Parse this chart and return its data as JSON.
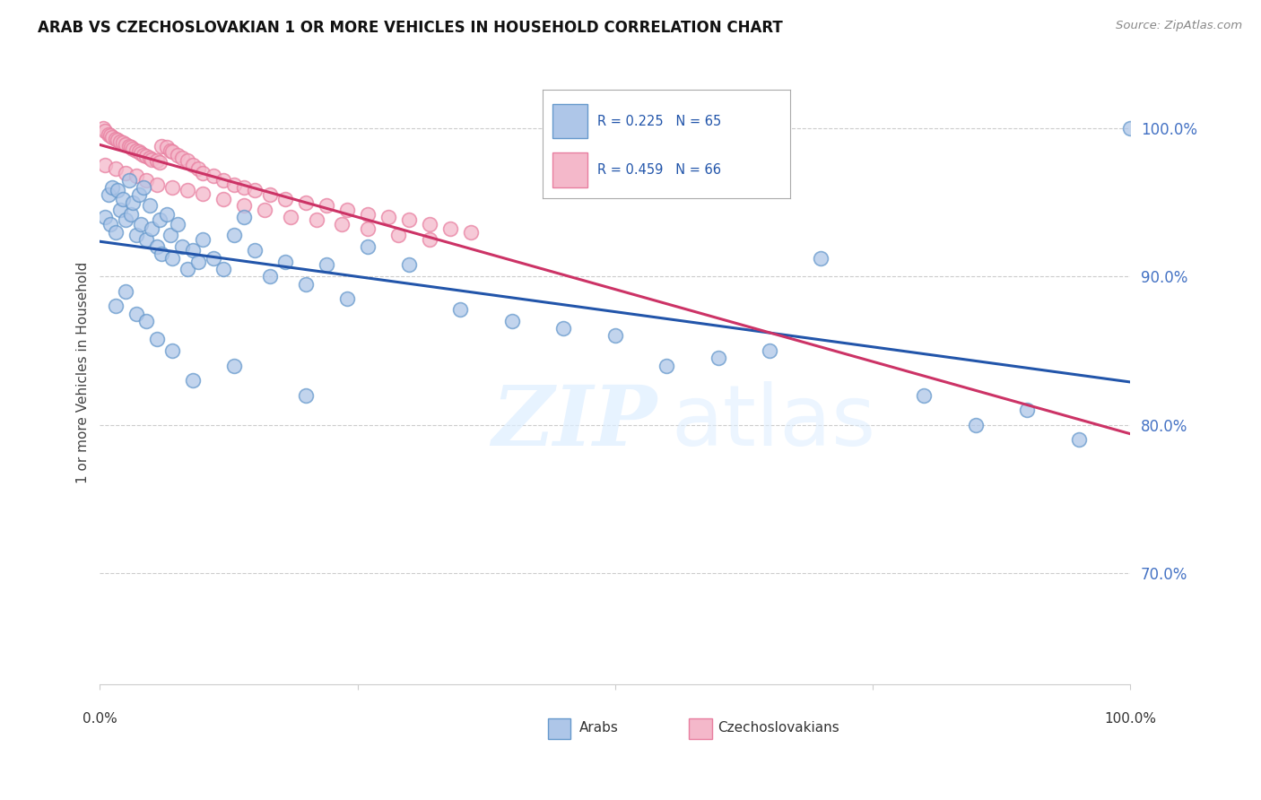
{
  "title": "ARAB VS CZECHOSLOVAKIAN 1 OR MORE VEHICLES IN HOUSEHOLD CORRELATION CHART",
  "source": "Source: ZipAtlas.com",
  "ylabel": "1 or more Vehicles in Household",
  "ytick_labels": [
    "70.0%",
    "80.0%",
    "90.0%",
    "100.0%"
  ],
  "ytick_values": [
    0.7,
    0.8,
    0.9,
    1.0
  ],
  "xlim": [
    0.0,
    1.0
  ],
  "ylim": [
    0.625,
    1.045
  ],
  "legend_blue_R": "R = 0.225",
  "legend_blue_N": "N = 65",
  "legend_pink_R": "R = 0.459",
  "legend_pink_N": "N = 66",
  "arab_color": "#aec6e8",
  "czech_color": "#f4b8ca",
  "arab_edge_color": "#6699cc",
  "czech_edge_color": "#e87fa0",
  "trend_blue": "#2255aa",
  "trend_pink": "#cc3366",
  "background_color": "#ffffff",
  "grid_color": "#cccccc",
  "watermark_zip": "ZIP",
  "watermark_atlas": "atlas",
  "arab_x": [
    0.005,
    0.008,
    0.01,
    0.012,
    0.015,
    0.017,
    0.02,
    0.022,
    0.025,
    0.028,
    0.03,
    0.032,
    0.035,
    0.038,
    0.04,
    0.042,
    0.045,
    0.048,
    0.05,
    0.055,
    0.058,
    0.06,
    0.065,
    0.068,
    0.07,
    0.075,
    0.08,
    0.085,
    0.09,
    0.095,
    0.1,
    0.11,
    0.12,
    0.13,
    0.14,
    0.15,
    0.165,
    0.18,
    0.2,
    0.22,
    0.24,
    0.26,
    0.3,
    0.35,
    0.4,
    0.45,
    0.5,
    0.55,
    0.6,
    0.65,
    0.7,
    0.8,
    0.85,
    0.9,
    0.95,
    1.0,
    0.015,
    0.025,
    0.035,
    0.045,
    0.055,
    0.07,
    0.09,
    0.13,
    0.2
  ],
  "arab_y": [
    0.94,
    0.955,
    0.935,
    0.96,
    0.93,
    0.958,
    0.945,
    0.952,
    0.938,
    0.965,
    0.942,
    0.95,
    0.928,
    0.955,
    0.935,
    0.96,
    0.925,
    0.948,
    0.932,
    0.92,
    0.938,
    0.915,
    0.942,
    0.928,
    0.912,
    0.935,
    0.92,
    0.905,
    0.918,
    0.91,
    0.925,
    0.912,
    0.905,
    0.928,
    0.94,
    0.918,
    0.9,
    0.91,
    0.895,
    0.908,
    0.885,
    0.92,
    0.908,
    0.878,
    0.87,
    0.865,
    0.86,
    0.84,
    0.845,
    0.85,
    0.912,
    0.82,
    0.8,
    0.81,
    0.79,
    1.0,
    0.88,
    0.89,
    0.875,
    0.87,
    0.858,
    0.85,
    0.83,
    0.84,
    0.82
  ],
  "czech_x": [
    0.003,
    0.005,
    0.008,
    0.01,
    0.012,
    0.015,
    0.017,
    0.02,
    0.022,
    0.025,
    0.028,
    0.03,
    0.032,
    0.035,
    0.038,
    0.04,
    0.042,
    0.045,
    0.048,
    0.05,
    0.055,
    0.058,
    0.06,
    0.065,
    0.068,
    0.07,
    0.075,
    0.08,
    0.085,
    0.09,
    0.095,
    0.1,
    0.11,
    0.12,
    0.13,
    0.14,
    0.15,
    0.165,
    0.18,
    0.2,
    0.22,
    0.24,
    0.26,
    0.28,
    0.3,
    0.32,
    0.34,
    0.36,
    0.005,
    0.015,
    0.025,
    0.035,
    0.045,
    0.055,
    0.07,
    0.085,
    0.1,
    0.12,
    0.14,
    0.16,
    0.185,
    0.21,
    0.235,
    0.26,
    0.29,
    0.32
  ],
  "czech_y": [
    1.0,
    0.998,
    0.996,
    0.995,
    0.994,
    0.993,
    0.992,
    0.991,
    0.99,
    0.989,
    0.988,
    0.987,
    0.986,
    0.985,
    0.984,
    0.983,
    0.982,
    0.981,
    0.98,
    0.979,
    0.978,
    0.977,
    0.988,
    0.987,
    0.985,
    0.984,
    0.982,
    0.98,
    0.978,
    0.975,
    0.973,
    0.97,
    0.968,
    0.965,
    0.962,
    0.96,
    0.958,
    0.955,
    0.952,
    0.95,
    0.948,
    0.945,
    0.942,
    0.94,
    0.938,
    0.935,
    0.932,
    0.93,
    0.975,
    0.973,
    0.97,
    0.968,
    0.965,
    0.962,
    0.96,
    0.958,
    0.956,
    0.952,
    0.948,
    0.945,
    0.94,
    0.938,
    0.935,
    0.932,
    0.928,
    0.925
  ]
}
